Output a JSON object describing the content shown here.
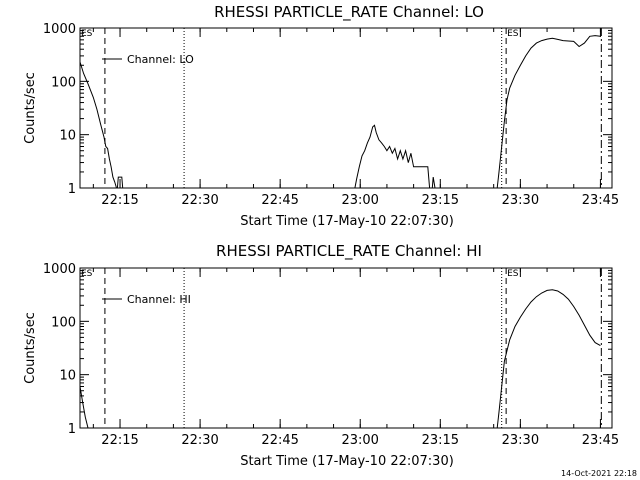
{
  "chart_data": [
    {
      "type": "line",
      "title": "RHESSI PARTICLE_RATE Channel: LO",
      "xlabel": "Start Time (17-May-10 22:07:30)",
      "ylabel": "Counts/sec",
      "yscale": "log",
      "ylim": [
        1,
        1000
      ],
      "xlim": [
        "22:07:30",
        "23:47:10"
      ],
      "ytick_labels": [
        "1",
        "10",
        "100",
        "1000"
      ],
      "xtick_labels": [
        "22:15",
        "22:30",
        "22:45",
        "23:00",
        "23:15",
        "23:30",
        "23:45"
      ],
      "legend": "Channel: LO",
      "legend_position": "top-left",
      "markers": [
        {
          "time": "22:07:30",
          "style": "dashed",
          "label": "ES"
        },
        {
          "time": "22:12:10",
          "style": "dashed",
          "label": ""
        },
        {
          "time": "22:27:00",
          "style": "dotted",
          "label": ""
        },
        {
          "time": "23:26:30",
          "style": "dotted",
          "label": ""
        },
        {
          "time": "23:27:20",
          "style": "dashed",
          "label": "ES"
        },
        {
          "time": "23:45:10",
          "style": "dashdot",
          "label": ""
        }
      ],
      "series": [
        {
          "name": "Channel: LO",
          "segments": [
            [
              [
                "22:07:30",
                230
              ],
              [
                "22:08:10",
                140
              ],
              [
                "22:09:00",
                90
              ],
              [
                "22:10:00",
                50
              ],
              [
                "22:10:40",
                30
              ],
              [
                "22:11:20",
                16
              ],
              [
                "22:12:00",
                9
              ],
              [
                "22:12:20",
                6
              ],
              [
                "22:12:40",
                5.5
              ],
              [
                "22:13:00",
                3.5
              ],
              [
                "22:13:20",
                2.5
              ],
              [
                "22:13:40",
                1.6
              ],
              [
                "22:14:00",
                1.3
              ],
              [
                "22:14:20",
                1.0
              ]
            ],
            [
              [
                "22:14:30",
                1.0
              ],
              [
                "22:14:40",
                1.6
              ],
              [
                "22:15:20",
                1.6
              ],
              [
                "22:15:30",
                1.0
              ]
            ],
            [
              [
                "22:59:00",
                1.0
              ],
              [
                "22:59:20",
                1.5
              ],
              [
                "22:59:50",
                2.5
              ],
              [
                "23:00:20",
                4
              ],
              [
                "23:00:50",
                5
              ],
              [
                "23:01:20",
                7
              ],
              [
                "23:01:50",
                9
              ],
              [
                "23:02:20",
                14
              ],
              [
                "23:02:40",
                15
              ],
              [
                "23:03:00",
                11
              ],
              [
                "23:03:30",
                8
              ],
              [
                "23:04:00",
                7
              ],
              [
                "23:04:30",
                6
              ],
              [
                "23:05:00",
                5
              ],
              [
                "23:05:30",
                6
              ],
              [
                "23:06:00",
                4.5
              ],
              [
                "23:06:30",
                5.5
              ],
              [
                "23:07:00",
                3.5
              ],
              [
                "23:07:30",
                5
              ],
              [
                "23:08:00",
                3.5
              ],
              [
                "23:08:30",
                5
              ],
              [
                "23:09:00",
                3
              ],
              [
                "23:09:30",
                4.5
              ],
              [
                "23:10:00",
                2.5
              ],
              [
                "23:11:00",
                2.5
              ],
              [
                "23:12:00",
                2.5
              ],
              [
                "23:12:40",
                2.5
              ],
              [
                "23:13:00",
                1.0
              ]
            ],
            [
              [
                "23:13:30",
                1.0
              ],
              [
                "23:13:40",
                1.6
              ],
              [
                "23:14:00",
                1.0
              ]
            ],
            [
              [
                "23:25:40",
                1.0
              ],
              [
                "23:26:00",
                2
              ],
              [
                "23:26:30",
                6
              ],
              [
                "23:27:00",
                18
              ],
              [
                "23:27:30",
                45
              ],
              [
                "23:28:00",
                75
              ],
              [
                "23:29:00",
                130
              ],
              [
                "23:30:00",
                200
              ],
              [
                "23:31:00",
                300
              ],
              [
                "23:32:00",
                420
              ],
              [
                "23:33:00",
                520
              ],
              [
                "23:34:00",
                580
              ],
              [
                "23:35:00",
                620
              ],
              [
                "23:36:00",
                640
              ],
              [
                "23:37:00",
                610
              ],
              [
                "23:38:00",
                580
              ],
              [
                "23:39:00",
                570
              ],
              [
                "23:40:00",
                560
              ],
              [
                "23:41:00",
                450
              ],
              [
                "23:42:00",
                520
              ],
              [
                "23:43:00",
                700
              ],
              [
                "23:44:00",
                720
              ],
              [
                "23:45:00",
                700
              ]
            ]
          ]
        }
      ]
    },
    {
      "type": "line",
      "title": "RHESSI PARTICLE_RATE Channel: HI",
      "xlabel": "Start Time (17-May-10 22:07:30)",
      "ylabel": "Counts/sec",
      "yscale": "log",
      "ylim": [
        1,
        1000
      ],
      "xlim": [
        "22:07:30",
        "23:47:10"
      ],
      "ytick_labels": [
        "1",
        "10",
        "100",
        "1000"
      ],
      "xtick_labels": [
        "22:15",
        "22:30",
        "22:45",
        "23:00",
        "23:15",
        "23:30",
        "23:45"
      ],
      "legend": "Channel: HI",
      "legend_position": "top-left",
      "markers": [
        {
          "time": "22:07:30",
          "style": "dashed",
          "label": "ES"
        },
        {
          "time": "22:12:10",
          "style": "dashed",
          "label": ""
        },
        {
          "time": "22:27:00",
          "style": "dotted",
          "label": ""
        },
        {
          "time": "23:26:30",
          "style": "dotted",
          "label": ""
        },
        {
          "time": "23:27:20",
          "style": "dashed",
          "label": "ES"
        },
        {
          "time": "23:45:10",
          "style": "dashdot",
          "label": ""
        }
      ],
      "series": [
        {
          "name": "Channel: HI",
          "segments": [
            [
              [
                "22:07:30",
                6
              ],
              [
                "22:08:00",
                3
              ],
              [
                "22:08:30",
                1.6
              ],
              [
                "22:09:00",
                1.0
              ]
            ],
            [
              [
                "23:25:40",
                1.0
              ],
              [
                "23:26:00",
                2
              ],
              [
                "23:26:30",
                6
              ],
              [
                "23:27:00",
                18
              ],
              [
                "23:28:00",
                45
              ],
              [
                "23:29:00",
                80
              ],
              [
                "23:30:00",
                120
              ],
              [
                "23:31:00",
                170
              ],
              [
                "23:32:00",
                230
              ],
              [
                "23:33:00",
                290
              ],
              [
                "23:34:00",
                340
              ],
              [
                "23:35:00",
                380
              ],
              [
                "23:36:00",
                390
              ],
              [
                "23:37:00",
                370
              ],
              [
                "23:38:00",
                320
              ],
              [
                "23:39:00",
                260
              ],
              [
                "23:40:00",
                190
              ],
              [
                "23:41:00",
                130
              ],
              [
                "23:42:00",
                85
              ],
              [
                "23:43:00",
                55
              ],
              [
                "23:44:00",
                40
              ],
              [
                "23:45:00",
                35
              ]
            ]
          ]
        }
      ]
    }
  ],
  "timestamp": "14-Oct-2021 22:18"
}
